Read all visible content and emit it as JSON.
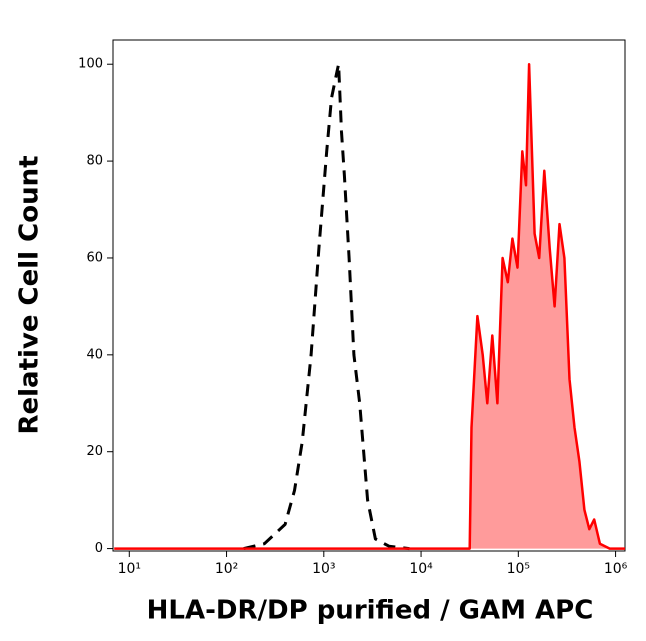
{
  "chart_data": {
    "type": "line",
    "x_label": "HLA-DR/DP purified / GAM APC",
    "y_label": "Relative Cell Count",
    "x_log": true,
    "xlim": [
      6.8,
      1250000
    ],
    "ylim": [
      -0.5,
      105
    ],
    "xticks": [
      {
        "value": 10,
        "label": "10¹"
      },
      {
        "value": 100,
        "label": "10²"
      },
      {
        "value": 1000,
        "label": "10³"
      },
      {
        "value": 10000,
        "label": "10⁴"
      },
      {
        "value": 100000,
        "label": "10⁵"
      },
      {
        "value": 1000000,
        "label": "10⁶"
      }
    ],
    "yticks": [
      0,
      20,
      40,
      60,
      80,
      100
    ],
    "series": [
      {
        "style": "dashed",
        "color": "#000000",
        "x": [
          150,
          245,
          400,
          500,
          600,
          740,
          890,
          1070,
          1200,
          1350,
          1420,
          1520,
          1630,
          1820,
          2040,
          2340,
          2820,
          3390,
          4680,
          7590
        ],
        "values": [
          0,
          1,
          5,
          12,
          22,
          40,
          62,
          82,
          93,
          98,
          100,
          86,
          77,
          60,
          40,
          30,
          10,
          2,
          0.5,
          0
        ]
      },
      {
        "style": "solid",
        "color": "#ff0000",
        "fill": "#ff9b9b",
        "x": [
          7,
          31600,
          33000,
          38000,
          43000,
          48000,
          54000,
          61000,
          69000,
          78000,
          87000,
          98000,
          110000,
          120000,
          129000,
          147000,
          164000,
          185000,
          210000,
          236000,
          265000,
          298000,
          336000,
          378000,
          425000,
          478000,
          537000,
          603000,
          690000,
          870000,
          1250000
        ],
        "values": [
          0,
          0,
          25,
          48,
          40,
          30,
          44,
          30,
          60,
          55,
          64,
          58,
          82,
          75,
          100,
          65,
          60,
          78,
          62,
          50,
          67,
          60,
          35,
          25,
          18,
          8,
          4,
          6,
          1,
          0,
          0
        ]
      }
    ]
  }
}
